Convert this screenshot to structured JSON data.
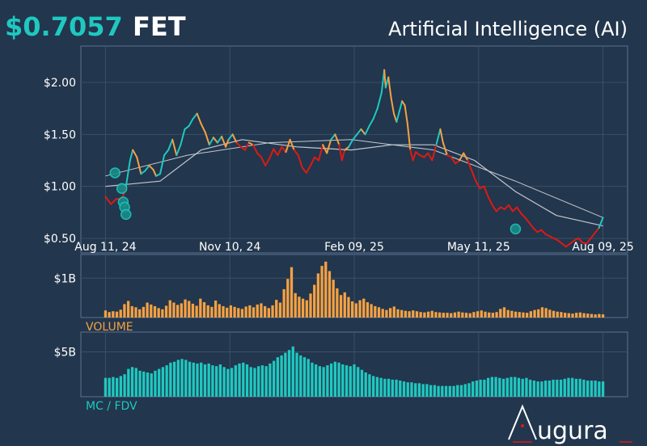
{
  "header": {
    "price": "$0.7057",
    "symbol": "FET",
    "sector": "Artificial Intelligence (AI)"
  },
  "colors": {
    "background": "#22364d",
    "panel_border": "#5b7391",
    "grid": "#3b5068",
    "teal": "#1fc8c0",
    "orange": "#f5a142",
    "red": "#dd1a14",
    "ma": "#c4c8cf",
    "text": "#ffffff"
  },
  "brand": {
    "logo_text": "ugura"
  },
  "chart_data": [
    {
      "type": "line",
      "panel": "price",
      "y_tick_labels": [
        "$2.00",
        "$1.50",
        "$1.00",
        "$0.50"
      ],
      "y_ticks": [
        2.0,
        1.5,
        1.0,
        0.5
      ],
      "ylim": [
        0.36,
        2.35
      ],
      "x_tick_labels": [
        "Aug 11, 24",
        "Nov 10, 24",
        "Feb 09, 25",
        "May 11, 25",
        "Aug 09, 25"
      ],
      "x_ticks": [
        0,
        91,
        182,
        273,
        364
      ],
      "xlim": [
        -18,
        382
      ],
      "grid": true,
      "price_points": [
        [
          0,
          0.9
        ],
        [
          4,
          0.83
        ],
        [
          8,
          0.88
        ],
        [
          12,
          0.87
        ],
        [
          15,
          1.0
        ],
        [
          18,
          1.25
        ],
        [
          20,
          1.35
        ],
        [
          23,
          1.28
        ],
        [
          26,
          1.12
        ],
        [
          29,
          1.15
        ],
        [
          32,
          1.2
        ],
        [
          35,
          1.16
        ],
        [
          37,
          1.1
        ],
        [
          40,
          1.12
        ],
        [
          43,
          1.3
        ],
        [
          46,
          1.35
        ],
        [
          49,
          1.45
        ],
        [
          52,
          1.3
        ],
        [
          55,
          1.4
        ],
        [
          58,
          1.55
        ],
        [
          61,
          1.58
        ],
        [
          64,
          1.65
        ],
        [
          67,
          1.7
        ],
        [
          70,
          1.6
        ],
        [
          73,
          1.52
        ],
        [
          76,
          1.4
        ],
        [
          79,
          1.47
        ],
        [
          82,
          1.42
        ],
        [
          85,
          1.48
        ],
        [
          88,
          1.38
        ],
        [
          90,
          1.45
        ],
        [
          93,
          1.5
        ],
        [
          96,
          1.42
        ],
        [
          99,
          1.38
        ],
        [
          102,
          1.35
        ],
        [
          105,
          1.42
        ],
        [
          108,
          1.4
        ],
        [
          111,
          1.32
        ],
        [
          114,
          1.28
        ],
        [
          117,
          1.2
        ],
        [
          120,
          1.27
        ],
        [
          123,
          1.36
        ],
        [
          126,
          1.3
        ],
        [
          129,
          1.38
        ],
        [
          132,
          1.33
        ],
        [
          135,
          1.45
        ],
        [
          138,
          1.35
        ],
        [
          141,
          1.3
        ],
        [
          144,
          1.18
        ],
        [
          147,
          1.13
        ],
        [
          150,
          1.2
        ],
        [
          153,
          1.28
        ],
        [
          156,
          1.25
        ],
        [
          159,
          1.4
        ],
        [
          162,
          1.32
        ],
        [
          165,
          1.45
        ],
        [
          168,
          1.5
        ],
        [
          171,
          1.4
        ],
        [
          173,
          1.25
        ],
        [
          175,
          1.35
        ],
        [
          178,
          1.38
        ],
        [
          181,
          1.45
        ],
        [
          184,
          1.5
        ],
        [
          187,
          1.55
        ],
        [
          190,
          1.5
        ],
        [
          193,
          1.58
        ],
        [
          196,
          1.65
        ],
        [
          199,
          1.75
        ],
        [
          202,
          1.9
        ],
        [
          204,
          2.12
        ],
        [
          205,
          1.95
        ],
        [
          207,
          2.05
        ],
        [
          209,
          1.85
        ],
        [
          211,
          1.7
        ],
        [
          213,
          1.62
        ],
        [
          215,
          1.72
        ],
        [
          217,
          1.82
        ],
        [
          219,
          1.78
        ],
        [
          221,
          1.6
        ],
        [
          223,
          1.35
        ],
        [
          225,
          1.25
        ],
        [
          227,
          1.33
        ],
        [
          230,
          1.3
        ],
        [
          233,
          1.28
        ],
        [
          236,
          1.32
        ],
        [
          239,
          1.25
        ],
        [
          242,
          1.4
        ],
        [
          245,
          1.55
        ],
        [
          247,
          1.42
        ],
        [
          250,
          1.3
        ],
        [
          253,
          1.28
        ],
        [
          256,
          1.22
        ],
        [
          259,
          1.25
        ],
        [
          262,
          1.32
        ],
        [
          265,
          1.25
        ],
        [
          268,
          1.15
        ],
        [
          271,
          1.05
        ],
        [
          274,
          0.98
        ],
        [
          277,
          1.0
        ],
        [
          280,
          0.9
        ],
        [
          283,
          0.82
        ],
        [
          286,
          0.76
        ],
        [
          289,
          0.8
        ],
        [
          292,
          0.78
        ],
        [
          295,
          0.82
        ],
        [
          298,
          0.76
        ],
        [
          301,
          0.8
        ],
        [
          304,
          0.74
        ],
        [
          307,
          0.7
        ],
        [
          310,
          0.65
        ],
        [
          313,
          0.6
        ],
        [
          316,
          0.56
        ],
        [
          319,
          0.58
        ],
        [
          322,
          0.54
        ],
        [
          325,
          0.52
        ],
        [
          328,
          0.5
        ],
        [
          331,
          0.48
        ],
        [
          334,
          0.45
        ],
        [
          337,
          0.42
        ],
        [
          340,
          0.45
        ],
        [
          343,
          0.48
        ],
        [
          346,
          0.5
        ],
        [
          349,
          0.46
        ],
        [
          352,
          0.45
        ],
        [
          355,
          0.5
        ],
        [
          358,
          0.55
        ],
        [
          361,
          0.6
        ],
        [
          364,
          0.7
        ]
      ],
      "ma_points": [
        [
          0,
          1.0
        ],
        [
          40,
          1.05
        ],
        [
          70,
          1.35
        ],
        [
          100,
          1.45
        ],
        [
          140,
          1.38
        ],
        [
          180,
          1.35
        ],
        [
          210,
          1.4
        ],
        [
          240,
          1.4
        ],
        [
          270,
          1.25
        ],
        [
          300,
          0.95
        ],
        [
          330,
          0.72
        ],
        [
          364,
          0.62
        ]
      ],
      "ma2_points": [
        [
          0,
          1.1
        ],
        [
          60,
          1.3
        ],
        [
          120,
          1.42
        ],
        [
          180,
          1.45
        ],
        [
          240,
          1.35
        ],
        [
          300,
          1.05
        ],
        [
          364,
          0.7
        ]
      ],
      "markers": [
        [
          7,
          1.13
        ],
        [
          12,
          0.98
        ],
        [
          13,
          0.85
        ],
        [
          14,
          0.8
        ],
        [
          15,
          0.73
        ],
        [
          300,
          0.59
        ]
      ]
    },
    {
      "type": "bar",
      "panel": "volume",
      "label": "VOLUME",
      "y_tick_labels": [
        "$1B"
      ],
      "y_ticks": [
        1.0
      ],
      "ylim": [
        0,
        1.6
      ],
      "values": [
        0.18,
        0.14,
        0.16,
        0.15,
        0.2,
        0.34,
        0.42,
        0.29,
        0.26,
        0.21,
        0.27,
        0.38,
        0.33,
        0.29,
        0.24,
        0.21,
        0.3,
        0.44,
        0.38,
        0.32,
        0.36,
        0.46,
        0.42,
        0.35,
        0.3,
        0.48,
        0.39,
        0.31,
        0.27,
        0.43,
        0.34,
        0.29,
        0.25,
        0.31,
        0.27,
        0.24,
        0.22,
        0.28,
        0.31,
        0.26,
        0.33,
        0.36,
        0.29,
        0.24,
        0.31,
        0.45,
        0.38,
        0.72,
        0.98,
        1.28,
        0.62,
        0.53,
        0.48,
        0.44,
        0.61,
        0.83,
        1.12,
        1.31,
        1.42,
        1.18,
        0.96,
        0.74,
        0.57,
        0.64,
        0.52,
        0.41,
        0.36,
        0.44,
        0.48,
        0.39,
        0.34,
        0.29,
        0.26,
        0.22,
        0.19,
        0.24,
        0.28,
        0.21,
        0.19,
        0.17,
        0.16,
        0.18,
        0.16,
        0.14,
        0.13,
        0.15,
        0.17,
        0.14,
        0.13,
        0.12,
        0.12,
        0.11,
        0.13,
        0.15,
        0.13,
        0.12,
        0.11,
        0.14,
        0.16,
        0.18,
        0.15,
        0.13,
        0.12,
        0.14,
        0.22,
        0.26,
        0.19,
        0.17,
        0.15,
        0.14,
        0.13,
        0.12,
        0.16,
        0.19,
        0.21,
        0.26,
        0.24,
        0.2,
        0.17,
        0.15,
        0.14,
        0.12,
        0.11,
        0.1,
        0.12,
        0.13,
        0.11,
        0.1,
        0.09,
        0.08,
        0.09,
        0.08
      ]
    },
    {
      "type": "bar",
      "panel": "mc_fdv",
      "label": "MC / FDV",
      "y_tick_labels": [
        "$5B"
      ],
      "y_ticks": [
        5.0
      ],
      "ylim": [
        0,
        7.2
      ],
      "values": [
        2.1,
        2.1,
        2.2,
        2.1,
        2.3,
        2.5,
        3.1,
        3.3,
        3.2,
        2.9,
        2.8,
        2.7,
        2.6,
        2.9,
        3.1,
        3.3,
        3.5,
        3.8,
        3.9,
        4.1,
        4.2,
        4.1,
        3.9,
        3.8,
        3.7,
        3.8,
        3.6,
        3.7,
        3.5,
        3.4,
        3.6,
        3.3,
        3.1,
        3.2,
        3.5,
        3.7,
        3.8,
        3.6,
        3.3,
        3.2,
        3.4,
        3.5,
        3.4,
        3.7,
        4.0,
        4.4,
        4.6,
        4.9,
        5.2,
        5.6,
        4.9,
        4.6,
        4.4,
        4.2,
        3.8,
        3.6,
        3.4,
        3.3,
        3.5,
        3.7,
        3.9,
        3.8,
        3.6,
        3.5,
        3.4,
        3.6,
        3.3,
        3.0,
        2.7,
        2.5,
        2.3,
        2.2,
        2.1,
        2.0,
        2.0,
        1.9,
        1.9,
        1.8,
        1.7,
        1.6,
        1.6,
        1.5,
        1.5,
        1.4,
        1.4,
        1.3,
        1.3,
        1.2,
        1.2,
        1.2,
        1.2,
        1.2,
        1.3,
        1.3,
        1.4,
        1.5,
        1.7,
        1.8,
        1.9,
        1.9,
        2.1,
        2.2,
        2.2,
        2.1,
        2.0,
        2.1,
        2.2,
        2.2,
        2.1,
        2.0,
        2.1,
        1.9,
        1.8,
        1.7,
        1.7,
        1.8,
        1.8,
        1.9,
        1.9,
        1.9,
        2.0,
        2.1,
        2.1,
        2.0,
        2.0,
        1.9,
        1.8,
        1.8,
        1.8,
        1.7,
        1.7
      ]
    }
  ]
}
